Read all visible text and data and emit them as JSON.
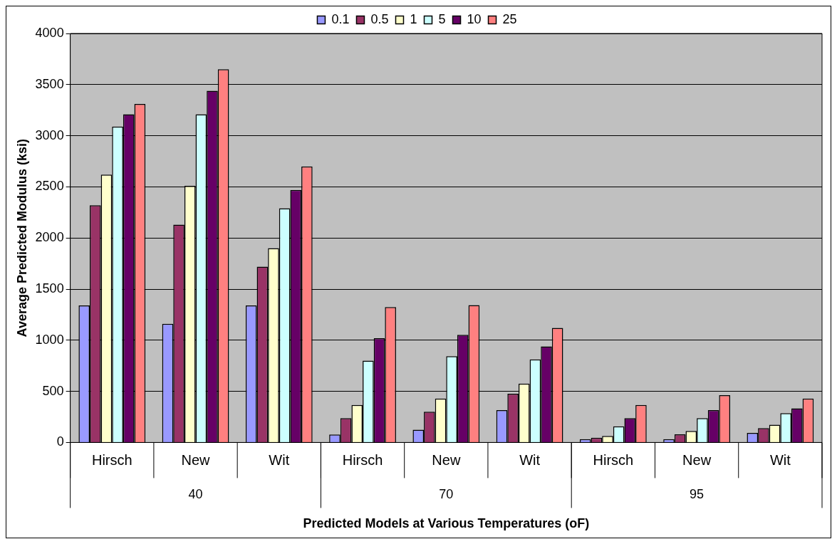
{
  "chart_data": {
    "type": "bar",
    "xlabel": "Predicted Models at Various Temperatures (oF)",
    "ylabel": "Average Predicted Modulus (ksi)",
    "categories": [
      "Hirsch",
      "New",
      "Wit",
      "Hirsch",
      "New",
      "Wit",
      "Hirsch",
      "New",
      "Wit"
    ],
    "annotations": [
      "40",
      "70",
      "95"
    ],
    "series": [
      {
        "name": "0.1",
        "color": "#9999ff",
        "values": [
          1340,
          1160,
          1340,
          77,
          124,
          317,
          33,
          33,
          94
        ]
      },
      {
        "name": "0.5",
        "color": "#993366",
        "values": [
          2320,
          2130,
          1720,
          237,
          301,
          477,
          47,
          80,
          141
        ]
      },
      {
        "name": "1",
        "color": "#ffffcc",
        "values": [
          2620,
          2510,
          1900,
          367,
          430,
          576,
          63,
          113,
          174
        ]
      },
      {
        "name": "5",
        "color": "#ccffff",
        "values": [
          3090,
          3210,
          2290,
          800,
          844,
          813,
          157,
          237,
          287
        ]
      },
      {
        "name": "10",
        "color": "#660066",
        "values": [
          3210,
          3440,
          2470,
          1020,
          1053,
          940,
          237,
          317,
          334
        ]
      },
      {
        "name": "25",
        "color": "#ff8080",
        "values": [
          3310,
          3650,
          2700,
          1324,
          1343,
          1120,
          367,
          463,
          430
        ]
      }
    ],
    "ylim": [
      0,
      4000
    ],
    "yticks": [
      0,
      500,
      1000,
      1500,
      2000,
      2500,
      3000,
      3500,
      4000
    ],
    "grid": "y",
    "legend": "top"
  }
}
